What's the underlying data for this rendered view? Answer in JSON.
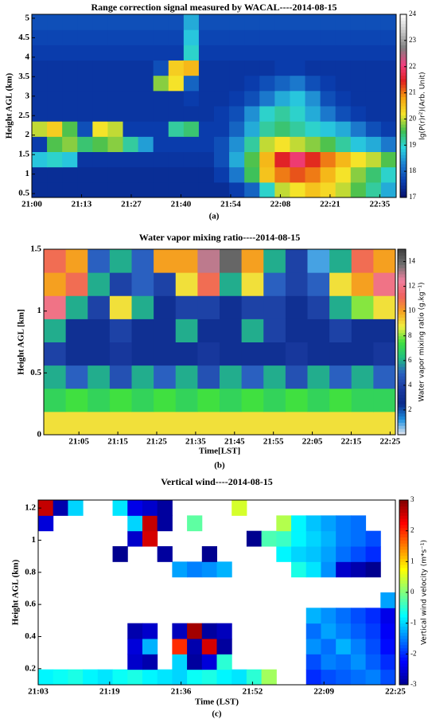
{
  "chart_data": [
    {
      "type": "heatmap",
      "title": "Range correction signal measured by WACAL----2014-08-15",
      "ylabel": "Height AGL (km)",
      "caption": "(a)",
      "colorbar_label": "lg(P(r)r²)(Arb. Unit)",
      "x_labels": [
        "21:00",
        "21:13",
        "21:27",
        "21:40",
        "21:54",
        "22:08",
        "22:21",
        "22:35"
      ],
      "ylim": [
        0.4,
        5.1
      ],
      "yticks": [
        0.5,
        1,
        1.5,
        2,
        2.5,
        3,
        3.5,
        4,
        4.5,
        5
      ],
      "clim": [
        17,
        24
      ],
      "cticks": [
        17,
        18,
        19,
        20,
        21,
        22,
        23,
        24
      ],
      "colormap": [
        "#08106b",
        "#0a3fb0",
        "#1d7fd0",
        "#2ad5e0",
        "#3fbf50",
        "#f5e52a",
        "#f5a010",
        "#e02020",
        "#f04080",
        "#808080",
        "#c8c8c8",
        "#ffffff"
      ],
      "z": [
        [
          17.4,
          17.4,
          17.4,
          17.4,
          17.4,
          17.4,
          17.4,
          17.4,
          17.4,
          17.4,
          17.4,
          17.4,
          17.4,
          17.6,
          18,
          19,
          20,
          20.2,
          20.5,
          20.3,
          20,
          19.6,
          19.2,
          18.6
        ],
        [
          17.4,
          17.4,
          17.4,
          17.4,
          17.4,
          17.4,
          17.4,
          17.4,
          17.4,
          17.4,
          17.4,
          17.4,
          17.6,
          18.2,
          19.5,
          20.5,
          21,
          21.2,
          21,
          20.6,
          20.2,
          19.8,
          19.4,
          19
        ],
        [
          18.8,
          19,
          18.8,
          17.5,
          17.5,
          17.5,
          17.5,
          17.5,
          17.5,
          17.5,
          17.5,
          17.5,
          17.8,
          18.6,
          19.6,
          20.6,
          21.5,
          22,
          21.4,
          21,
          20.6,
          20.2,
          20,
          19.6
        ],
        [
          17.6,
          19.6,
          19.8,
          19.4,
          19.6,
          19.8,
          19.2,
          18.5,
          17.6,
          17.6,
          17.6,
          17.6,
          17.8,
          18.4,
          19.2,
          20,
          20.2,
          20,
          19.8,
          19.6,
          19.2,
          18.8,
          18.6,
          18.2
        ],
        [
          20,
          20.4,
          19.6,
          17.8,
          20.2,
          20,
          17.6,
          17.6,
          17.6,
          19.2,
          19.4,
          17.6,
          17.6,
          18,
          18.6,
          19.2,
          19.4,
          19.2,
          19,
          18.8,
          18.6,
          18.2,
          17.8,
          17.6
        ],
        [
          17.5,
          17.5,
          17.5,
          17.5,
          17.5,
          17.5,
          17.5,
          17.5,
          17.5,
          17.5,
          17.5,
          17.5,
          17.6,
          17.8,
          18.4,
          19,
          19.2,
          19,
          18.6,
          18.2,
          17.8,
          17.6,
          17.5,
          17.5
        ],
        [
          17.5,
          17.5,
          17.5,
          17.5,
          17.5,
          17.5,
          17.5,
          17.5,
          17.5,
          17.5,
          17.6,
          17.5,
          17.5,
          17.6,
          17.8,
          18.2,
          18.6,
          18.8,
          18.4,
          17.8,
          17.6,
          17.5,
          17.5,
          17.5
        ],
        [
          17.5,
          17.5,
          17.5,
          17.5,
          17.5,
          17.5,
          17.5,
          17.5,
          19.8,
          20.2,
          18,
          17.5,
          17.5,
          17.5,
          17.6,
          17.8,
          18,
          18.2,
          17.8,
          17.6,
          17.5,
          17.5,
          17.5,
          17.5
        ],
        [
          17.5,
          17.5,
          17.5,
          17.5,
          17.5,
          17.5,
          17.5,
          17.5,
          17.8,
          20.4,
          20.6,
          17.5,
          17.5,
          17.5,
          17.5,
          17.5,
          17.6,
          17.6,
          17.5,
          17.5,
          17.5,
          17.5,
          17.5,
          17.5
        ],
        [
          17.6,
          17.6,
          17.6,
          17.6,
          17.6,
          17.6,
          17.6,
          17.6,
          17.6,
          17.6,
          19,
          17.6,
          17.6,
          17.6,
          17.6,
          17.6,
          17.6,
          17.6,
          17.6,
          17.6,
          17.6,
          17.6,
          17.6,
          17.6
        ],
        [
          17.7,
          17.7,
          17.7,
          17.7,
          17.7,
          17.7,
          17.7,
          17.7,
          17.7,
          17.7,
          18.8,
          17.7,
          17.7,
          17.7,
          17.7,
          17.7,
          17.7,
          17.7,
          17.7,
          17.7,
          17.7,
          17.7,
          17.7,
          17.7
        ],
        [
          17.8,
          17.8,
          17.8,
          17.8,
          17.8,
          17.8,
          17.8,
          17.8,
          17.8,
          17.8,
          18.6,
          17.8,
          17.8,
          17.8,
          17.8,
          17.8,
          17.8,
          17.8,
          17.8,
          17.8,
          17.8,
          17.8,
          17.8,
          17.8
        ]
      ]
    },
    {
      "type": "heatmap",
      "title": "Water vapor mixing ratio----2014-08-15",
      "xlabel": "Time[LST]",
      "ylabel": "Height AGL [km]",
      "caption": "(b)",
      "colorbar_label": "Water vapor mixing ratio (g.kg⁻¹)",
      "x_labels": [
        "21:05",
        "21:15",
        "21:25",
        "21:35",
        "21:45",
        "21:55",
        "22:05",
        "22:15",
        "22:25"
      ],
      "ylim": [
        0,
        1.5
      ],
      "yticks": [
        0,
        0.5,
        1,
        1.5
      ],
      "clim": [
        0,
        15
      ],
      "cticks": [
        2,
        4,
        6,
        8,
        10,
        12,
        14
      ],
      "colormap": [
        "#e8e8f0",
        "#1e90e0",
        "#0a2a8a",
        "#1a3aa0",
        "#2a60c0",
        "#20c080",
        "#40e040",
        "#f0f040",
        "#f5a020",
        "#f06060",
        "#f080a0",
        "#707070",
        "#404040"
      ],
      "z": [
        [
          9,
          9,
          9,
          9,
          9,
          9,
          9,
          9,
          9,
          9,
          9,
          9,
          9,
          9,
          9,
          9
        ],
        [
          7,
          7.5,
          7,
          7.5,
          7,
          7.5,
          7,
          7.5,
          7,
          7.5,
          7,
          7.5,
          7,
          7.5,
          7,
          7
        ],
        [
          6,
          5,
          6,
          4.5,
          6,
          5,
          6,
          4.5,
          6,
          5,
          6,
          4.5,
          6,
          5,
          6,
          5
        ],
        [
          4,
          3,
          3,
          3.5,
          3,
          3,
          3,
          3.5,
          3,
          3,
          3,
          3.5,
          3,
          3,
          3,
          3.5
        ],
        [
          6,
          3,
          3,
          4,
          3,
          3,
          6,
          3,
          3,
          6,
          4,
          3,
          3,
          4,
          3,
          3
        ],
        [
          12,
          6,
          4,
          9,
          6,
          3,
          4,
          4,
          3,
          4,
          4,
          3,
          4,
          6,
          8,
          9
        ],
        [
          10,
          11,
          6,
          4,
          5,
          4,
          9,
          11,
          6,
          9,
          5,
          4,
          5,
          9,
          10,
          12
        ],
        [
          11,
          10,
          5,
          6,
          5,
          10,
          10,
          13,
          14,
          10,
          6,
          4,
          1,
          6,
          11,
          10
        ]
      ]
    },
    {
      "type": "heatmap",
      "title": "Vertical wind----2014-08-15",
      "xlabel": "Time (LST)",
      "ylabel": "Height AGL (km)",
      "caption": "(c)",
      "colorbar_label": "Vertical wind velocity (m*s⁻¹)",
      "x_labels": [
        "21:03",
        "21:19",
        "21:36",
        "21:52",
        "22:09",
        "22:25"
      ],
      "ylim": [
        0.1,
        1.25
      ],
      "yticks": [
        0.2,
        0.4,
        0.6,
        0.8,
        1,
        1.2
      ],
      "clim": [
        -3,
        3
      ],
      "cticks": [
        -3,
        -2,
        -1,
        0,
        1,
        2,
        3
      ],
      "colormap": [
        "#00008f",
        "#0000ff",
        "#0080ff",
        "#00ffff",
        "#80ff80",
        "#ffff00",
        "#ff8000",
        "#ff0000",
        "#800000"
      ],
      "z": [
        [
          -0.8,
          -0.7,
          -0.6,
          -0.8,
          -0.9,
          -0.7,
          -0.6,
          -0.8,
          -0.9,
          -1,
          -0.7,
          -0.6,
          -0.8,
          -0.9,
          -0.5,
          0.2,
          null,
          null,
          -2,
          -1.8,
          -1.7,
          -1.6,
          -1.5,
          -1.8
        ],
        [
          null,
          null,
          null,
          null,
          null,
          null,
          -2.6,
          -2.8,
          null,
          -1,
          -2.9,
          -2.5,
          -0.5,
          null,
          null,
          null,
          null,
          null,
          -1.8,
          -1.5,
          -1.6,
          -1.4,
          -1.7,
          -2
        ],
        [
          null,
          null,
          null,
          null,
          null,
          null,
          -2.5,
          -1.2,
          null,
          2,
          -2.8,
          2.5,
          -2.9,
          null,
          null,
          null,
          null,
          null,
          -1.4,
          -1.6,
          -1.2,
          -1.5,
          -1.8,
          -2.2
        ],
        [
          null,
          null,
          null,
          null,
          null,
          null,
          -2.8,
          -2.6,
          null,
          -2.7,
          2.8,
          -2.9,
          -2.7,
          null,
          null,
          null,
          null,
          null,
          -1.6,
          -1.3,
          -1.5,
          -1.7,
          -1.9,
          -2.3
        ],
        [
          null,
          null,
          null,
          null,
          null,
          null,
          null,
          null,
          null,
          null,
          null,
          null,
          null,
          null,
          null,
          null,
          null,
          null,
          -1.2,
          -1.4,
          -1.6,
          -1.8,
          -2,
          -2.4
        ],
        [
          null,
          null,
          null,
          null,
          null,
          null,
          null,
          null,
          null,
          null,
          null,
          null,
          null,
          null,
          null,
          null,
          null,
          null,
          null,
          null,
          null,
          null,
          null,
          -1.3
        ],
        [
          null,
          null,
          null,
          null,
          null,
          null,
          null,
          null,
          null,
          null,
          null,
          null,
          null,
          null,
          null,
          null,
          null,
          null,
          null,
          null,
          null,
          null,
          null,
          null
        ],
        [
          null,
          null,
          null,
          null,
          null,
          null,
          null,
          null,
          null,
          -1.3,
          -1.5,
          -1.4,
          -1.2,
          null,
          null,
          null,
          null,
          -0.6,
          -0.9,
          -1.4,
          -2.6,
          -2.8,
          -3,
          null
        ],
        [
          null,
          null,
          null,
          null,
          null,
          -3,
          null,
          null,
          -2.9,
          null,
          null,
          -3,
          null,
          null,
          null,
          null,
          -0.8,
          -1,
          -1.1,
          -1.3,
          -1.6,
          -1.8,
          -2,
          null
        ],
        [
          null,
          null,
          null,
          null,
          null,
          null,
          -2.6,
          2.5,
          null,
          null,
          null,
          null,
          null,
          null,
          -3,
          -0.3,
          -0.4,
          -0.8,
          -1,
          -1.2,
          -1.5,
          -1.6,
          -1.8,
          null
        ],
        [
          -2.5,
          null,
          null,
          null,
          null,
          null,
          -1,
          2.6,
          -2.9,
          null,
          -0.2,
          null,
          null,
          null,
          null,
          null,
          0.3,
          -0.8,
          -1.1,
          -1.3,
          -1.5,
          -1.6,
          null,
          null
        ],
        [
          2.6,
          -2.8,
          -1,
          null,
          null,
          -0.9,
          -2.4,
          -2.6,
          -2.9,
          null,
          null,
          null,
          null,
          0.5,
          null,
          null,
          null,
          null,
          null,
          null,
          null,
          null,
          null,
          null
        ]
      ]
    }
  ]
}
